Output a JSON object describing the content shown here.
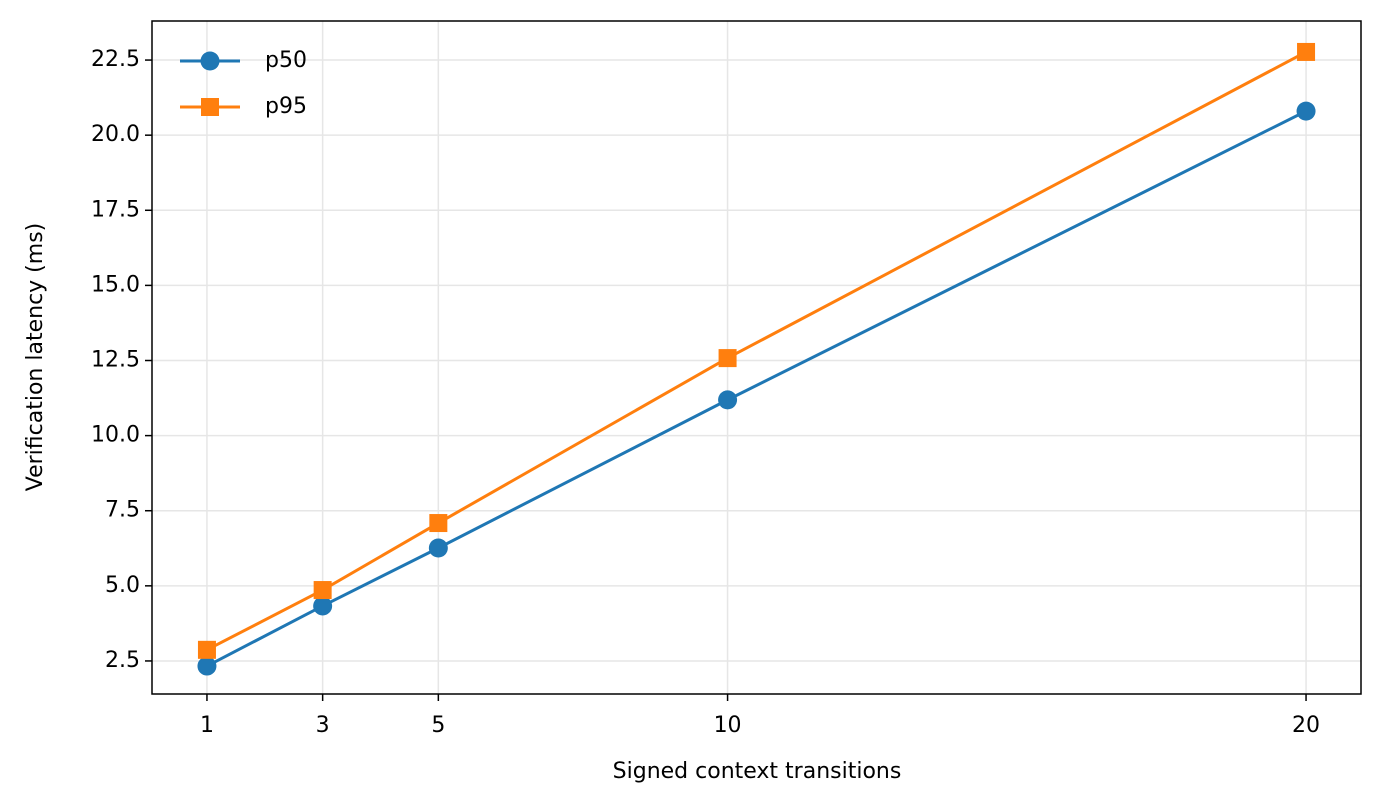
{
  "chart_data": {
    "type": "line",
    "x_label": "Signed context transitions",
    "y_label": "Verification latency (ms)",
    "x": [
      1,
      3,
      5,
      10,
      20
    ],
    "series": [
      {
        "name": "p50",
        "color": "#1f77b4",
        "marker": "circle",
        "values": [
          2.33,
          4.33,
          6.26,
          11.19,
          20.8
        ]
      },
      {
        "name": "p95",
        "color": "#ff7f0e",
        "marker": "square",
        "values": [
          2.87,
          4.86,
          7.09,
          12.58,
          22.77
        ]
      }
    ],
    "xlim": [
      0.05,
      20.95
    ],
    "ylim": [
      1.4,
      23.8
    ],
    "xticks": [
      1,
      3,
      5,
      10,
      20
    ],
    "yticks": [
      2.5,
      {
        "value": 5,
        "label": "5.0"
      },
      7.5,
      {
        "value": 10,
        "label": "10.0"
      },
      12.5,
      {
        "value": 15,
        "label": "15.0"
      },
      17.5,
      {
        "value": 20,
        "label": "20.0"
      },
      22.5
    ],
    "grid": true,
    "legend": "upper-left"
  }
}
